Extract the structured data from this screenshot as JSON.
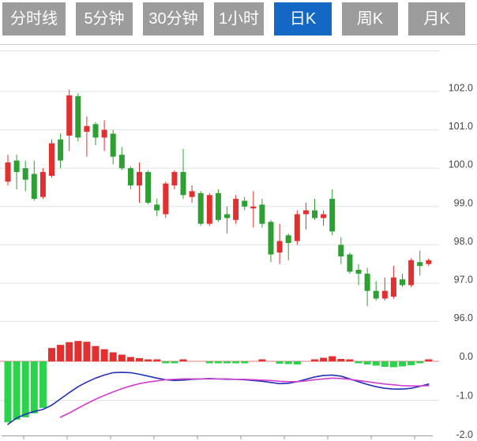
{
  "tab_bar": {
    "items": [
      {
        "name": "tab-timeline",
        "label": "分时线",
        "active": false
      },
      {
        "name": "tab-5min",
        "label": "5分钟",
        "active": false
      },
      {
        "name": "tab-30min",
        "label": "30分钟",
        "active": false
      },
      {
        "name": "tab-1hour",
        "label": "1小时",
        "active": false
      },
      {
        "name": "tab-daily-k",
        "label": "日K",
        "active": true
      },
      {
        "name": "tab-weekly-k",
        "label": "周K",
        "active": false
      },
      {
        "name": "tab-monthly-k",
        "label": "月K",
        "active": false
      }
    ]
  },
  "colors": {
    "tab_active_bg": "#1268c3",
    "tab_inactive_bg": "#9c9c9c",
    "tab_text": "#ffffff",
    "candle_up": "#e23030",
    "candle_down": "#2d9f33",
    "hist_positive": "#e23030",
    "hist_negative": "#2bd24b",
    "dif_line": "#2531b4",
    "dea_line": "#cf3ecf",
    "grid": "#e2e2e2",
    "zero_line": "#e57b7b",
    "axis_line": "#9a9a9a",
    "axis_text": "#454545",
    "divider": "#cbcbcb"
  },
  "chart_data": {
    "type": "candlestick",
    "timeframe": "日K",
    "panels": [
      "price",
      "macd"
    ],
    "legend_position": "none",
    "grid": true,
    "price_axis": {
      "ticks": [
        102.0,
        101.0,
        100.0,
        99.0,
        98.0,
        97.0,
        96.0
      ],
      "range": [
        95.8,
        103.0
      ]
    },
    "macd_axis": {
      "ticks": [
        0.0,
        -1.0,
        -2.0
      ],
      "range": [
        0.6,
        -2.0
      ]
    },
    "candles_ohlc": [
      [
        99.65,
        100.35,
        99.55,
        100.15
      ],
      [
        100.2,
        100.35,
        99.45,
        99.9
      ],
      [
        100.0,
        100.2,
        99.4,
        99.7
      ],
      [
        99.85,
        100.2,
        99.15,
        99.2
      ],
      [
        99.25,
        100.0,
        99.2,
        99.9
      ],
      [
        99.8,
        100.75,
        99.75,
        100.65
      ],
      [
        100.75,
        100.9,
        100.0,
        100.2
      ],
      [
        100.85,
        102.05,
        100.45,
        101.9
      ],
      [
        101.88,
        101.95,
        100.7,
        100.8
      ],
      [
        100.95,
        101.35,
        100.3,
        101.1
      ],
      [
        101.15,
        101.2,
        100.6,
        100.8
      ],
      [
        100.8,
        101.25,
        100.45,
        101.0
      ],
      [
        100.9,
        101.0,
        100.1,
        100.3
      ],
      [
        100.35,
        100.55,
        99.95,
        100.0
      ],
      [
        100.0,
        100.05,
        99.45,
        99.55
      ],
      [
        99.55,
        100.15,
        99.1,
        99.9
      ],
      [
        99.9,
        99.95,
        99.05,
        99.1
      ],
      [
        99.05,
        99.2,
        98.75,
        98.9
      ],
      [
        98.8,
        99.65,
        98.7,
        99.6
      ],
      [
        99.55,
        99.95,
        99.45,
        99.9
      ],
      [
        99.9,
        100.5,
        99.2,
        99.3
      ],
      [
        99.25,
        99.55,
        99.1,
        99.4
      ],
      [
        99.35,
        99.4,
        98.5,
        98.55
      ],
      [
        98.55,
        99.35,
        98.5,
        99.3
      ],
      [
        99.35,
        99.45,
        98.6,
        98.65
      ],
      [
        98.8,
        99.0,
        98.3,
        98.7
      ],
      [
        98.65,
        99.3,
        98.55,
        99.2
      ],
      [
        99.15,
        99.25,
        98.9,
        99.0
      ],
      [
        98.95,
        99.4,
        98.45,
        99.0
      ],
      [
        99.05,
        99.2,
        98.45,
        98.55
      ],
      [
        98.6,
        98.65,
        97.55,
        97.75
      ],
      [
        97.8,
        98.55,
        97.5,
        98.1
      ],
      [
        98.25,
        98.3,
        97.6,
        98.05
      ],
      [
        98.1,
        98.9,
        98.0,
        98.8
      ],
      [
        98.8,
        99.1,
        98.4,
        98.9
      ],
      [
        98.9,
        99.2,
        98.65,
        98.7
      ],
      [
        98.7,
        98.9,
        98.5,
        98.8
      ],
      [
        99.2,
        99.45,
        98.25,
        98.35
      ],
      [
        98.0,
        98.2,
        97.5,
        97.7
      ],
      [
        97.75,
        97.8,
        97.25,
        97.3
      ],
      [
        97.35,
        97.5,
        96.95,
        97.25
      ],
      [
        97.25,
        97.4,
        96.4,
        96.8
      ],
      [
        96.8,
        97.05,
        96.55,
        96.6
      ],
      [
        96.6,
        97.15,
        96.55,
        96.8
      ],
      [
        96.65,
        97.45,
        96.6,
        97.15
      ],
      [
        97.1,
        97.25,
        96.9,
        96.95
      ],
      [
        96.95,
        97.65,
        96.9,
        97.6
      ],
      [
        97.55,
        97.85,
        97.2,
        97.45
      ],
      [
        97.5,
        97.65,
        97.45,
        97.6
      ]
    ],
    "macd": {
      "histogram": [
        -1.56,
        -1.49,
        -1.43,
        -1.33,
        -1.19,
        0.34,
        0.42,
        0.49,
        0.52,
        0.5,
        0.39,
        0.31,
        0.23,
        0.17,
        0.11,
        0.08,
        0.05,
        0.02,
        -0.02,
        -0.02,
        0.02,
        null,
        null,
        -0.04,
        -0.04,
        -0.04,
        -0.04,
        -0.04,
        null,
        0.02,
        null,
        -0.06,
        -0.07,
        -0.08,
        null,
        0.05,
        0.09,
        0.13,
        0.06,
        0.02,
        -0.05,
        -0.08,
        -0.11,
        -0.14,
        -0.15,
        -0.13,
        -0.1,
        -0.04,
        0.04
      ],
      "dif": [
        -1.61,
        -1.45,
        -1.35,
        -1.28,
        -1.23,
        -1.12,
        -0.96,
        -0.8,
        -0.65,
        -0.53,
        -0.43,
        -0.35,
        -0.29,
        -0.28,
        -0.29,
        -0.33,
        -0.38,
        -0.43,
        -0.47,
        -0.49,
        -0.48,
        -0.46,
        -0.45,
        -0.44,
        -0.45,
        -0.46,
        -0.46,
        -0.47,
        -0.49,
        -0.51,
        -0.54,
        -0.57,
        -0.56,
        -0.52,
        -0.46,
        -0.4,
        -0.36,
        -0.35,
        -0.38,
        -0.45,
        -0.52,
        -0.59,
        -0.65,
        -0.69,
        -0.71,
        -0.71,
        -0.69,
        -0.64,
        -0.58
      ],
      "dea": [
        null,
        null,
        null,
        null,
        null,
        null,
        -1.43,
        -1.32,
        -1.2,
        -1.08,
        -0.97,
        -0.87,
        -0.78,
        -0.7,
        -0.63,
        -0.57,
        -0.53,
        -0.5,
        -0.47,
        -0.46,
        -0.45,
        -0.45,
        -0.45,
        -0.45,
        -0.45,
        -0.45,
        -0.46,
        -0.46,
        -0.47,
        -0.48,
        -0.49,
        -0.51,
        -0.52,
        -0.52,
        -0.5,
        -0.47,
        -0.45,
        -0.43,
        -0.44,
        -0.46,
        -0.49,
        -0.52,
        -0.55,
        -0.58,
        -0.6,
        -0.62,
        -0.63,
        -0.63,
        -0.62
      ]
    }
  }
}
